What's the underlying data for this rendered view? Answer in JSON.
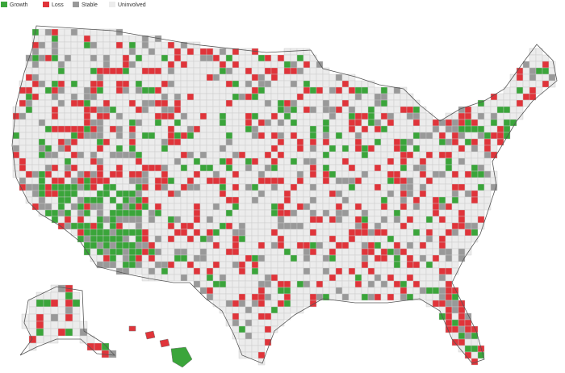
{
  "legend": {
    "items": [
      {
        "label": "Growth",
        "color": "#3aa53a"
      },
      {
        "label": "Loss",
        "color": "#e0343a"
      },
      {
        "label": "Stable",
        "color": "#999999"
      },
      {
        "label": "Uninvolved",
        "color": "#ececec"
      }
    ]
  }
}
